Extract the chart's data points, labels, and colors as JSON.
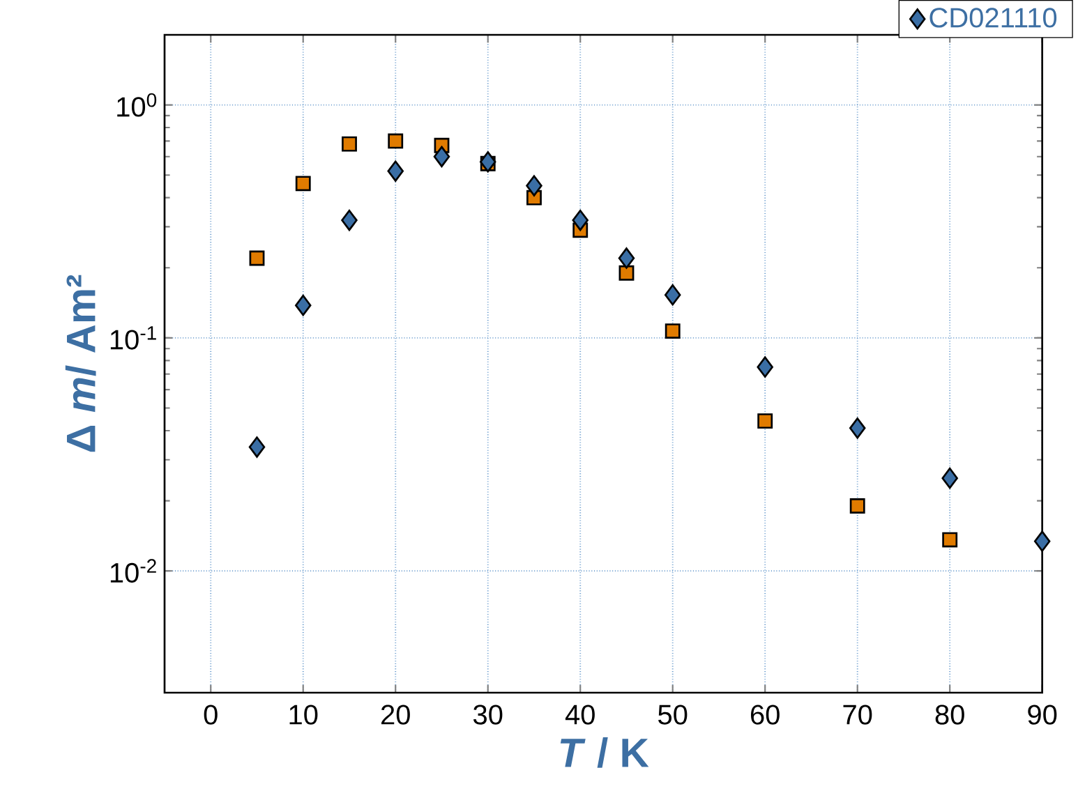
{
  "chart_data": {
    "type": "scatter",
    "xlabel": "*T* / K",
    "ylabel": "Δ *m*/ Am²",
    "x": [
      5,
      10,
      15,
      20,
      25,
      30,
      35,
      40,
      45,
      50,
      60,
      70,
      80,
      90
    ],
    "series": [
      {
        "color": "#e07b00",
        "marker": "square",
        "values": [
          0.22,
          0.46,
          0.68,
          0.7,
          0.67,
          0.56,
          0.4,
          0.29,
          0.19,
          0.107,
          0.044,
          0.019,
          0.0136,
          null
        ]
      },
      {
        "name": "CD021110",
        "color": "#3a6ea5",
        "marker": "diamond",
        "values": [
          0.034,
          0.138,
          0.32,
          0.52,
          0.6,
          0.57,
          0.45,
          0.32,
          0.22,
          0.153,
          0.075,
          0.041,
          0.025,
          0.0134
        ]
      }
    ],
    "xlim": [
      -5,
      90
    ],
    "ylim": [
      0.003,
      2
    ],
    "xticks": [
      0,
      10,
      20,
      30,
      40,
      50,
      60,
      70,
      80,
      90
    ],
    "yticks": [
      {
        "value": 0.01,
        "label": "10$^{-2}$"
      },
      {
        "value": 0.1,
        "label": "10$^{-1}$"
      },
      {
        "value": 1,
        "label": "10$^{0}$"
      }
    ],
    "log": "y",
    "grid": true,
    "legend": "top right"
  }
}
